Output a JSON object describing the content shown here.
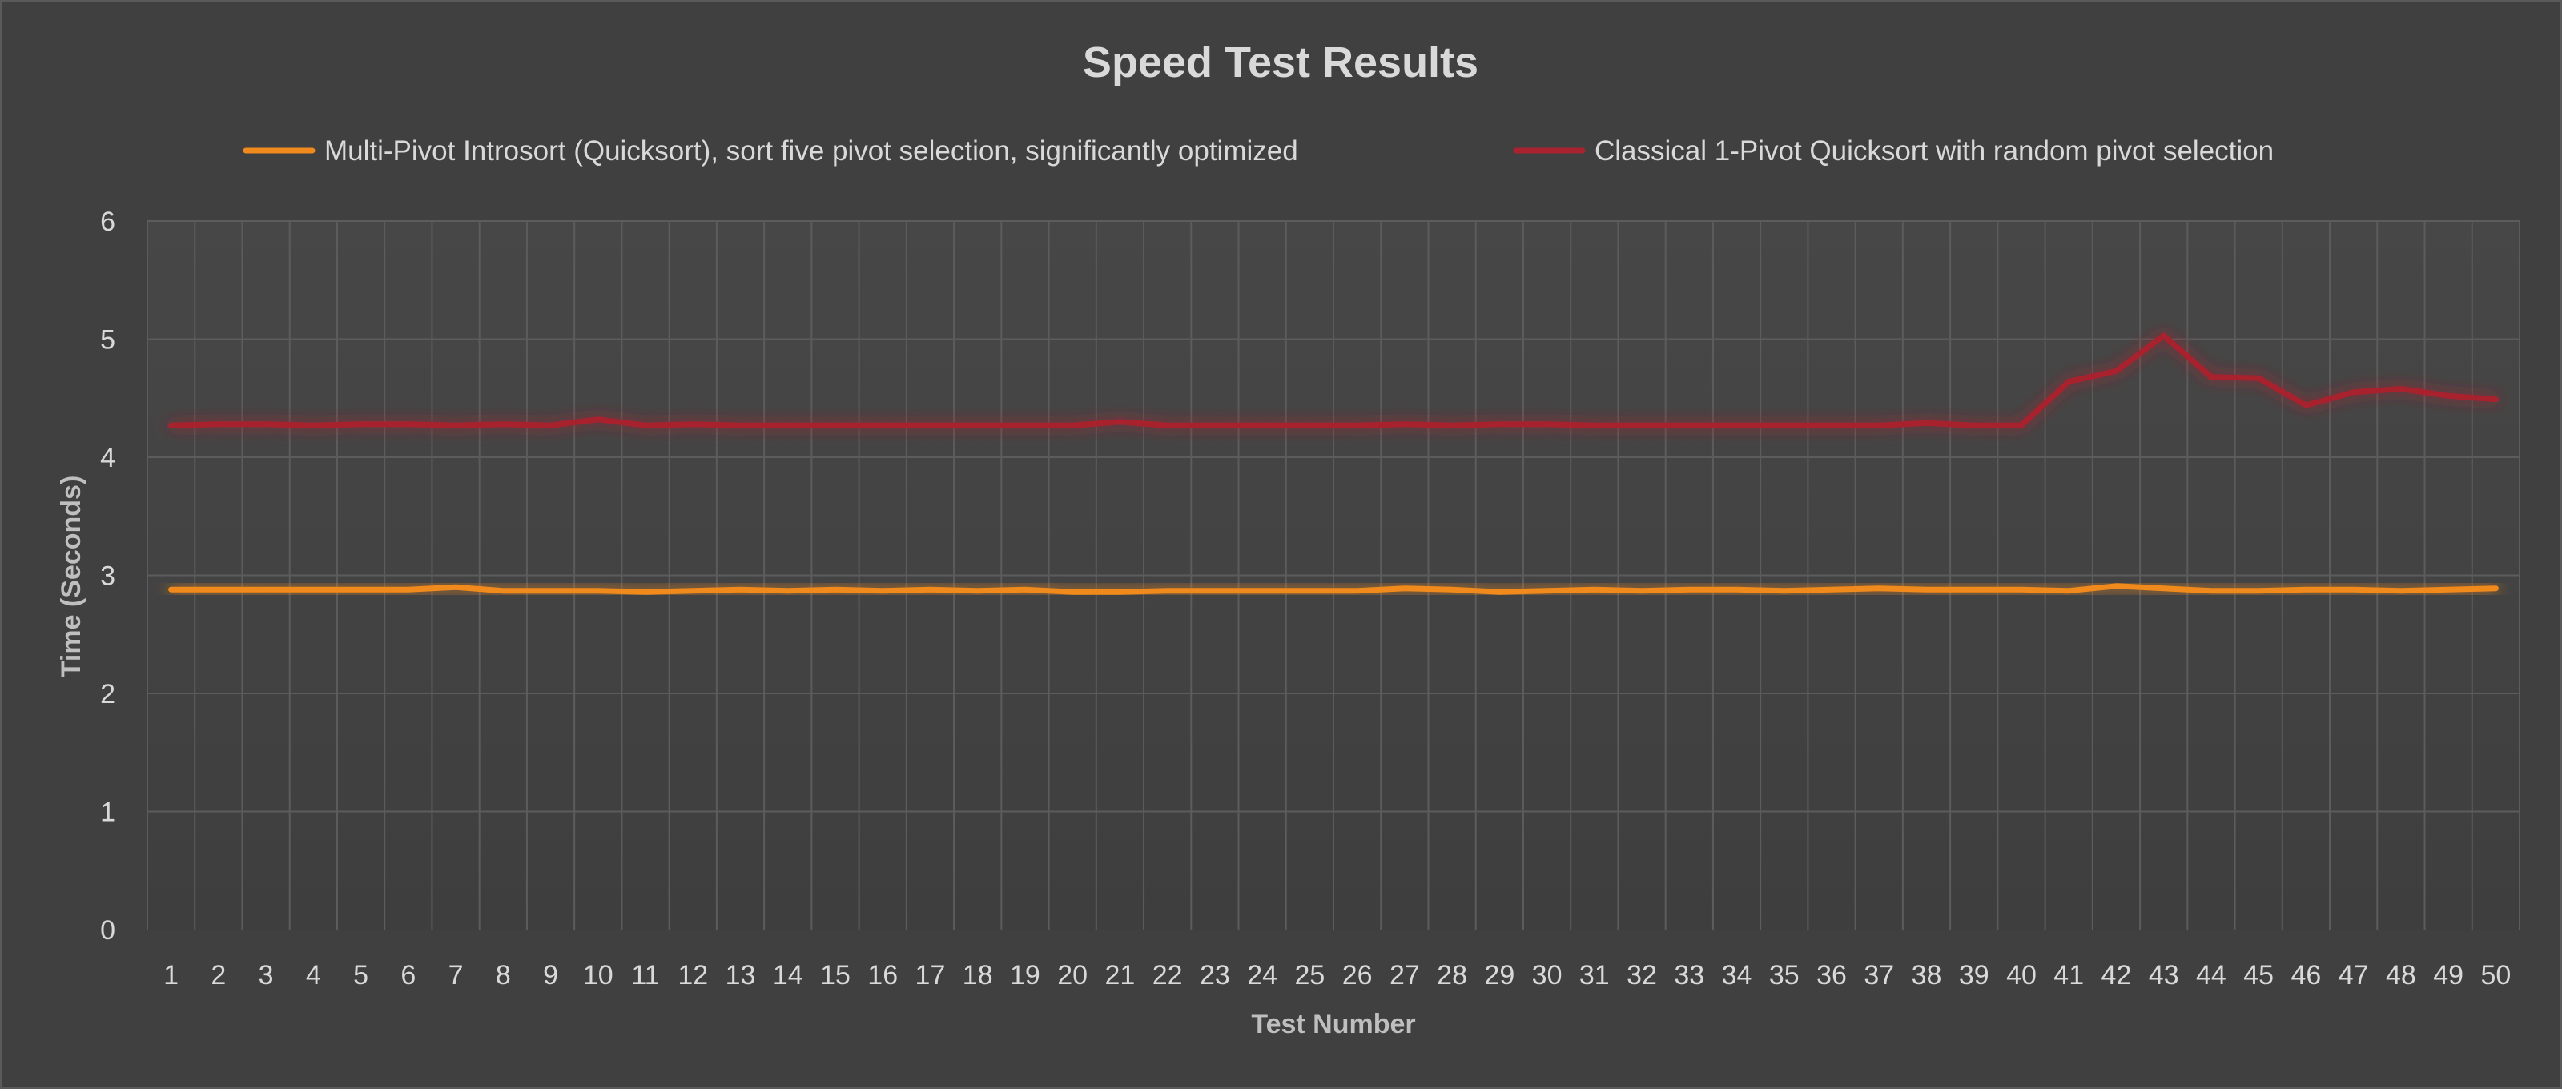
{
  "chart_data": {
    "type": "line",
    "title": "Speed Test Results",
    "xlabel": "Test Number",
    "ylabel": "Time (Seconds)",
    "ylim": [
      0,
      6
    ],
    "yticks": [
      "0",
      "1",
      "2",
      "3",
      "4",
      "5",
      "6"
    ],
    "grid": true,
    "legend_position": "top",
    "categories": [
      "1",
      "2",
      "3",
      "4",
      "5",
      "6",
      "7",
      "8",
      "9",
      "10",
      "11",
      "12",
      "13",
      "14",
      "15",
      "16",
      "17",
      "18",
      "19",
      "20",
      "21",
      "22",
      "23",
      "24",
      "25",
      "26",
      "27",
      "28",
      "29",
      "30",
      "31",
      "32",
      "33",
      "34",
      "35",
      "36",
      "37",
      "38",
      "39",
      "40",
      "41",
      "42",
      "43",
      "44",
      "45",
      "46",
      "47",
      "48",
      "49",
      "50"
    ],
    "series": [
      {
        "name": "Multi-Pivot Introsort (Quicksort), sort five pivot selection, significantly optimized",
        "color": "#f08a1c",
        "values": [
          2.88,
          2.88,
          2.88,
          2.88,
          2.88,
          2.88,
          2.9,
          2.87,
          2.87,
          2.87,
          2.86,
          2.87,
          2.88,
          2.87,
          2.88,
          2.87,
          2.88,
          2.87,
          2.88,
          2.86,
          2.86,
          2.87,
          2.87,
          2.87,
          2.87,
          2.87,
          2.89,
          2.88,
          2.86,
          2.87,
          2.88,
          2.87,
          2.88,
          2.88,
          2.87,
          2.88,
          2.89,
          2.88,
          2.88,
          2.88,
          2.87,
          2.91,
          2.89,
          2.87,
          2.87,
          2.88,
          2.88,
          2.87,
          2.88,
          2.89
        ]
      },
      {
        "name": "Classical 1-Pivot Quicksort with random pivot selection",
        "color": "#a8232f",
        "values": [
          4.27,
          4.28,
          4.28,
          4.27,
          4.28,
          4.28,
          4.27,
          4.28,
          4.27,
          4.32,
          4.27,
          4.28,
          4.27,
          4.27,
          4.27,
          4.27,
          4.27,
          4.27,
          4.27,
          4.27,
          4.3,
          4.27,
          4.27,
          4.27,
          4.27,
          4.27,
          4.28,
          4.27,
          4.28,
          4.28,
          4.27,
          4.27,
          4.27,
          4.27,
          4.27,
          4.27,
          4.27,
          4.29,
          4.27,
          4.27,
          4.64,
          4.73,
          5.03,
          4.68,
          4.67,
          4.44,
          4.55,
          4.58,
          4.52,
          4.49
        ]
      }
    ]
  }
}
